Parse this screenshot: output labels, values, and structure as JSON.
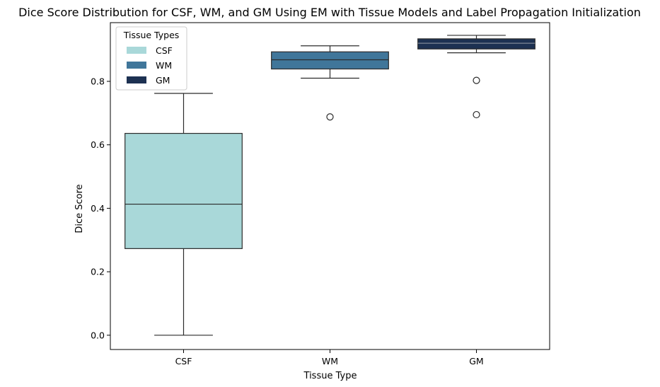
{
  "chart_data": {
    "type": "box",
    "title": "Dice Score Distribution for CSF, WM, and GM Using EM with Tissue Models and Label Propagation Initialization",
    "xlabel": "Tissue Type",
    "ylabel": "Dice Score",
    "ylim": [
      -0.045,
      0.985
    ],
    "yticks": [
      0.0,
      0.2,
      0.4,
      0.6,
      0.8
    ],
    "ytick_labels": [
      "0.0",
      "0.2",
      "0.4",
      "0.6",
      "0.8"
    ],
    "categories": [
      "CSF",
      "WM",
      "GM"
    ],
    "grid": false,
    "legend": {
      "title": "Tissue Types",
      "placement": "top-left",
      "entries": [
        "CSF",
        "WM",
        "GM"
      ]
    },
    "series": [
      {
        "name": "CSF",
        "color": "#a9d8d9",
        "whisker_low": 0.0,
        "q1": 0.273,
        "median": 0.413,
        "q3": 0.636,
        "whisker_high": 0.762,
        "outliers": []
      },
      {
        "name": "WM",
        "color": "#40769a",
        "whisker_low": 0.81,
        "q1": 0.839,
        "median": 0.868,
        "q3": 0.893,
        "whisker_high": 0.912,
        "outliers": [
          0.688
        ]
      },
      {
        "name": "GM",
        "color": "#1d3152",
        "whisker_low": 0.89,
        "q1": 0.902,
        "median": 0.92,
        "q3": 0.934,
        "whisker_high": 0.945,
        "outliers": [
          0.803,
          0.695
        ]
      }
    ]
  }
}
